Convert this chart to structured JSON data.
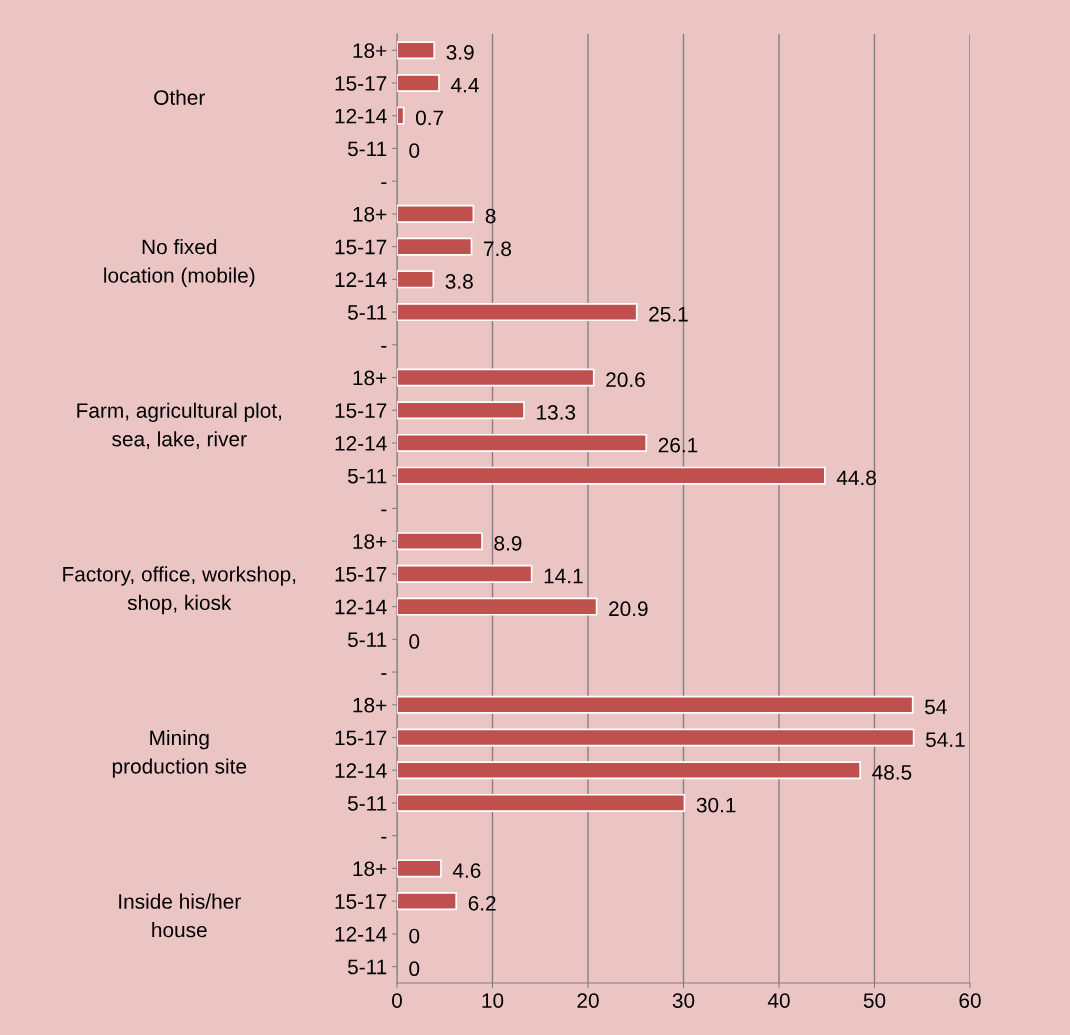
{
  "chart_data": {
    "type": "bar",
    "orientation": "horizontal",
    "categories": [
      "18+",
      "15-17",
      "12-14",
      "5-11",
      "-",
      "18+",
      "15-17",
      "12-14",
      "5-11",
      "-",
      "18+",
      "15-17",
      "12-14",
      "5-11",
      "-",
      "18+",
      "15-17",
      "12-14",
      "5-11",
      "-",
      "18+",
      "15-17",
      "12-14",
      "5-11",
      "-",
      "18+",
      "15-17",
      "12-14",
      "5-11"
    ],
    "values": [
      3.9,
      4.4,
      0.7,
      0,
      null,
      8,
      7.8,
      3.8,
      25.1,
      null,
      20.6,
      13.3,
      26.1,
      44.8,
      null,
      8.9,
      14.1,
      20.9,
      0,
      null,
      54,
      54.1,
      48.5,
      30.1,
      null,
      4.6,
      6.2,
      0,
      0
    ],
    "color": "#c0504d",
    "annotations": [
      "Other",
      "No fixed\nlocation (mobile)",
      "Farm, agricultural plot,\nsea, lake, river",
      "Factory, office, workshop,\nshop, kiosk",
      "Mining\nproduction site",
      "Inside his/her\nhouse"
    ],
    "xlim": [
      0,
      60
    ],
    "xticks": [
      0,
      10,
      20,
      30,
      40,
      50,
      60
    ],
    "grid": "x",
    "data_labels": true
  }
}
